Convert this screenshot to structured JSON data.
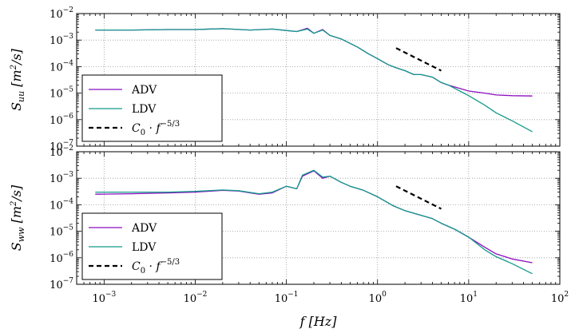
{
  "chart_data": [
    {
      "type": "line",
      "panel": "top",
      "xscale": "log",
      "yscale": "log",
      "xlim": [
        0.0005,
        100
      ],
      "ylim": [
        1e-07,
        0.01
      ],
      "grid": true,
      "grid_style": "dotted",
      "xlabel": "",
      "ylabel": "S_uu [m^2/s]",
      "ylabel_parts": {
        "sym": "S",
        "sub": "uu",
        "unit_open": "[m",
        "unit_sup": "2",
        "unit_close": "/s]"
      },
      "yticks": [
        {
          "mant": "10",
          "exp": "−7"
        },
        {
          "mant": "10",
          "exp": "−6"
        },
        {
          "mant": "10",
          "exp": "−5"
        },
        {
          "mant": "10",
          "exp": "−4"
        },
        {
          "mant": "10",
          "exp": "−3"
        },
        {
          "mant": "10",
          "exp": "−2"
        }
      ],
      "xticks_labeled": false,
      "legend": {
        "placement": "lower-left",
        "entries": [
          {
            "label": "ADV",
            "style": "solid",
            "color": "#8b0fbf"
          },
          {
            "label": "LDV",
            "style": "solid",
            "color": "#129b8a"
          },
          {
            "label": "C_0 · f^-5/3",
            "parts": {
              "c": "C",
              "csub": "0",
              "dot": " · f",
              "exp": "−5/3"
            },
            "style": "dashed",
            "color": "#000000"
          }
        ]
      },
      "series": [
        {
          "name": "ADV",
          "color": "#8b0fbf",
          "x": [
            0.0008,
            0.002,
            0.005,
            0.01,
            0.02,
            0.04,
            0.07,
            0.1,
            0.13,
            0.17,
            0.2,
            0.25,
            0.3,
            0.4,
            0.6,
            0.8,
            1.0,
            1.3,
            1.6,
            2.0,
            2.5,
            3.0,
            4.0,
            5.0,
            6.0,
            8.0,
            10,
            15,
            20,
            30,
            50
          ],
          "y": [
            0.0024,
            0.0024,
            0.0025,
            0.0025,
            0.0027,
            0.0024,
            0.0026,
            0.0023,
            0.0021,
            0.0028,
            0.0018,
            0.0025,
            0.0015,
            0.0011,
            0.00055,
            0.0003,
            0.0002,
            0.00012,
            9e-05,
            7e-05,
            5e-05,
            5e-05,
            4e-05,
            2.5e-05,
            2e-05,
            1.5e-05,
            1.2e-05,
            1e-05,
            8.5e-06,
            8e-06,
            7.8e-06
          ]
        },
        {
          "name": "LDV",
          "color": "#129b8a",
          "x": [
            0.0008,
            0.002,
            0.005,
            0.01,
            0.02,
            0.04,
            0.07,
            0.1,
            0.13,
            0.17,
            0.2,
            0.25,
            0.3,
            0.4,
            0.6,
            0.8,
            1.0,
            1.3,
            1.6,
            2.0,
            2.5,
            3.0,
            4.0,
            5.0,
            6.0,
            8.0,
            10,
            15,
            20,
            30,
            50
          ],
          "y": [
            0.0024,
            0.0024,
            0.0025,
            0.0025,
            0.0027,
            0.0024,
            0.0026,
            0.0023,
            0.0021,
            0.0026,
            0.0018,
            0.0024,
            0.0015,
            0.0011,
            0.00055,
            0.0003,
            0.0002,
            0.00012,
            9e-05,
            7e-05,
            5e-05,
            5e-05,
            4e-05,
            2.5e-05,
            2e-05,
            1.2e-05,
            8e-06,
            3.5e-06,
            1.8e-06,
            9e-07,
            3.5e-07
          ]
        },
        {
          "name": "C_0 · f^-5/3",
          "color": "#000000",
          "style": "dashed",
          "x": [
            1.6,
            5.0
          ],
          "y": [
            0.0005,
            7e-05
          ]
        }
      ]
    },
    {
      "type": "line",
      "panel": "bottom",
      "xscale": "log",
      "yscale": "log",
      "xlim": [
        0.0005,
        100
      ],
      "ylim": [
        1e-07,
        0.01
      ],
      "grid": true,
      "grid_style": "dotted",
      "xlabel": "f [Hz]",
      "xlabel_parts": {
        "sym": "f",
        "unit": "[Hz]"
      },
      "ylabel": "S_ww [m^2/s]",
      "ylabel_parts": {
        "sym": "S",
        "sub": "ww",
        "unit_open": "[m",
        "unit_sup": "2",
        "unit_close": "/s]"
      },
      "yticks": [
        {
          "mant": "10",
          "exp": "−7"
        },
        {
          "mant": "10",
          "exp": "−6"
        },
        {
          "mant": "10",
          "exp": "−5"
        },
        {
          "mant": "10",
          "exp": "−4"
        },
        {
          "mant": "10",
          "exp": "−3"
        },
        {
          "mant": "10",
          "exp": "−2"
        }
      ],
      "xticks": [
        {
          "mant": "10",
          "exp": "−3"
        },
        {
          "mant": "10",
          "exp": "−2"
        },
        {
          "mant": "10",
          "exp": "−1"
        },
        {
          "mant": "10",
          "exp": "0"
        },
        {
          "mant": "10",
          "exp": "1"
        },
        {
          "mant": "10",
          "exp": "2"
        }
      ],
      "legend": {
        "placement": "lower-left",
        "entries": [
          {
            "label": "ADV",
            "style": "solid",
            "color": "#8b0fbf"
          },
          {
            "label": "LDV",
            "style": "solid",
            "color": "#129b8a"
          },
          {
            "label": "C_0 · f^-5/3",
            "parts": {
              "c": "C",
              "csub": "0",
              "dot": " · f",
              "exp": "−5/3"
            },
            "style": "dashed",
            "color": "#000000"
          }
        ]
      },
      "series": [
        {
          "name": "ADV",
          "color": "#8b0fbf",
          "x": [
            0.0008,
            0.002,
            0.005,
            0.01,
            0.02,
            0.03,
            0.05,
            0.07,
            0.1,
            0.13,
            0.15,
            0.18,
            0.2,
            0.25,
            0.3,
            0.4,
            0.5,
            0.7,
            1.0,
            1.5,
            2.0,
            3.0,
            4.0,
            5.0,
            7.0,
            10,
            15,
            20,
            30,
            50
          ],
          "y": [
            0.00025,
            0.00026,
            0.00028,
            0.0003,
            0.00035,
            0.00033,
            0.00025,
            0.00028,
            0.0005,
            0.0004,
            0.0012,
            0.0016,
            0.0019,
            0.001,
            0.0012,
            0.0007,
            0.0005,
            0.00035,
            0.0002,
            9e-05,
            6e-05,
            4e-05,
            3e-05,
            2e-05,
            1.2e-05,
            6e-06,
            2.5e-06,
            1.4e-06,
            9e-07,
            6.5e-07
          ]
        },
        {
          "name": "LDV",
          "color": "#129b8a",
          "x": [
            0.0008,
            0.002,
            0.005,
            0.01,
            0.02,
            0.03,
            0.05,
            0.07,
            0.1,
            0.13,
            0.15,
            0.18,
            0.2,
            0.25,
            0.3,
            0.4,
            0.5,
            0.7,
            1.0,
            1.5,
            2.0,
            3.0,
            4.0,
            5.0,
            7.0,
            10,
            15,
            20,
            30,
            50
          ],
          "y": [
            0.0003,
            0.0003,
            0.0003,
            0.00032,
            0.00036,
            0.00034,
            0.00026,
            0.0003,
            0.0005,
            0.0004,
            0.0013,
            0.0017,
            0.002,
            0.0011,
            0.0012,
            0.0007,
            0.0005,
            0.00035,
            0.0002,
            9e-05,
            6e-05,
            4e-05,
            3e-05,
            2e-05,
            1.2e-05,
            6e-06,
            2e-06,
            1.1e-06,
            6e-07,
            2.5e-07
          ]
        },
        {
          "name": "C_0 · f^-5/3",
          "color": "#000000",
          "style": "dashed",
          "x": [
            1.6,
            5.0
          ],
          "y": [
            0.0005,
            7e-05
          ]
        }
      ]
    }
  ]
}
